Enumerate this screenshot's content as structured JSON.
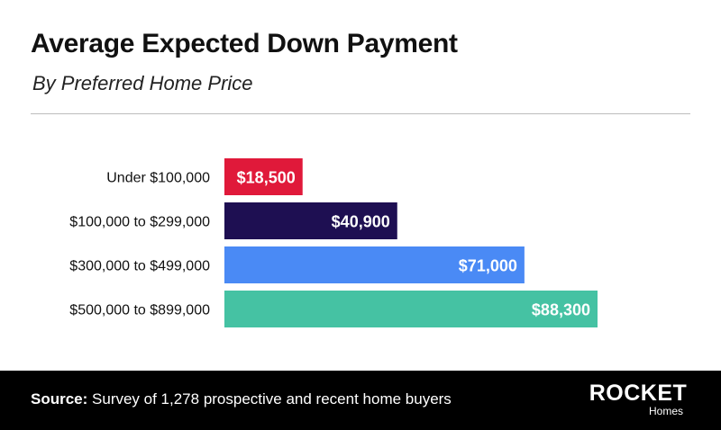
{
  "title": "Average Expected Down Payment",
  "subtitle": "By Preferred Home Price",
  "chart_data": {
    "type": "bar",
    "orientation": "horizontal",
    "title": "Average Expected Down Payment",
    "subtitle": "By Preferred Home Price",
    "categories": [
      "Under $100,000",
      "$100,000 to $299,000",
      "$300,000 to $499,000",
      "$500,000 to $899,000"
    ],
    "values": [
      18500,
      40900,
      71000,
      88300
    ],
    "value_labels": [
      "$18,500",
      "$40,900",
      "$71,000",
      "$88,300"
    ],
    "colors": [
      "#e0193a",
      "#1e0f52",
      "#4a8af5",
      "#45c2a3"
    ],
    "xlabel": "",
    "ylabel": "",
    "xlim": [
      0,
      88300
    ],
    "grid": false,
    "legend": "none"
  },
  "footer": {
    "source_key": "Source:",
    "source_text": " Survey of 1,278 prospective and recent home buyers",
    "logo_main": "ROCKET",
    "logo_sub": "Homes"
  }
}
